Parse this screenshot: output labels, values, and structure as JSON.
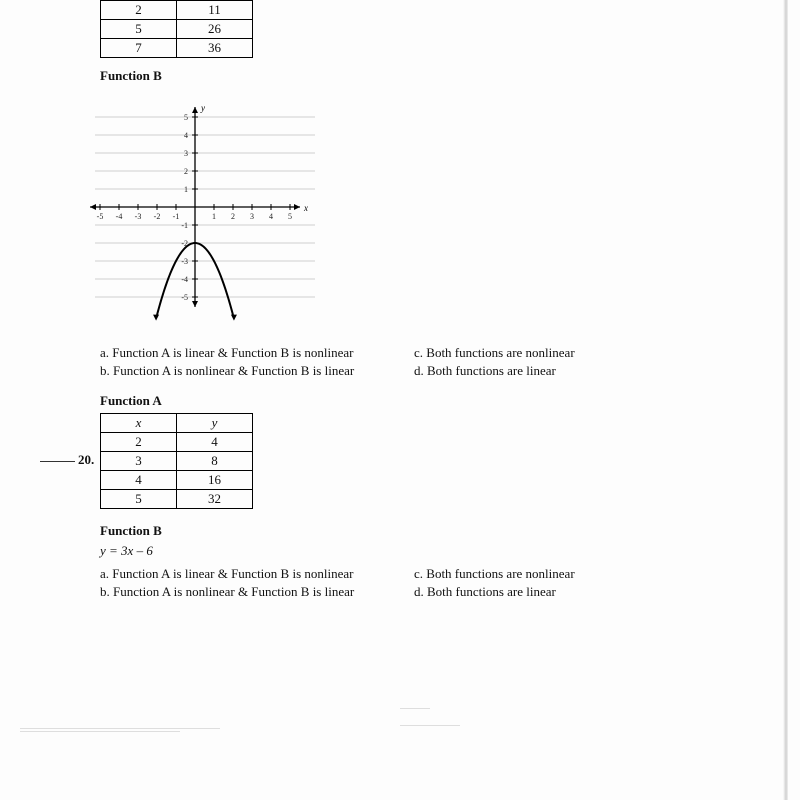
{
  "q19": {
    "tableA_rows": [
      [
        "2",
        "11"
      ],
      [
        "5",
        "26"
      ],
      [
        "7",
        "36"
      ]
    ],
    "titleB": "Function B",
    "graph": {
      "xmin": -5,
      "xmax": 5,
      "ymin": -5,
      "ymax": 5,
      "xticks": [
        -5,
        -4,
        -3,
        -2,
        -1,
        1,
        2,
        3,
        4,
        5
      ],
      "yticks": [
        -5,
        -4,
        -3,
        -2,
        -1,
        1,
        2,
        3,
        4,
        5
      ],
      "axis_color": "#000000",
      "grid_color": "#bfbfbf",
      "ylabel": "y",
      "xlabel": "x",
      "parabola": {
        "vertex": [
          0,
          -2
        ],
        "a": -1,
        "color": "#000000",
        "width": 2
      }
    },
    "choices": {
      "a": "a. Function A is linear & Function B is nonlinear",
      "b": "b. Function A is nonlinear & Function B is linear",
      "c": "c. Both functions are nonlinear",
      "d": "d. Both functions are linear"
    }
  },
  "q20": {
    "number": "20.",
    "titleA": "Function A",
    "tableA_header": [
      "x",
      "y"
    ],
    "tableA_rows": [
      [
        "2",
        "4"
      ],
      [
        "3",
        "8"
      ],
      [
        "4",
        "16"
      ],
      [
        "5",
        "32"
      ]
    ],
    "titleB": "Function B",
    "equation": "y = 3x – 6",
    "choices": {
      "a": "a. Function A is linear & Function B is nonlinear",
      "b": "b. Function A is nonlinear & Function B is linear",
      "c": "c. Both functions are nonlinear",
      "d": "d. Both functions are linear"
    }
  }
}
